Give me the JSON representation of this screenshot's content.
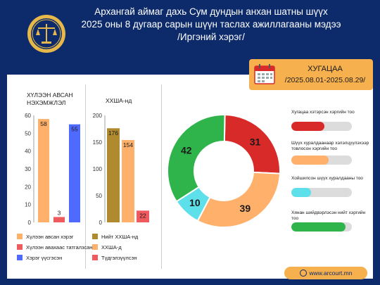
{
  "header": {
    "line1": "Архангай аймаг дахь Сум дундын анхан шатны шүүх",
    "line2": "2025 оны 8 дугаар сарын шүүн таслах ажиллагааны мэдээ",
    "line3": "/Иргэний хэрэг/"
  },
  "deadline": {
    "title": "ХУГАЦАА",
    "range": "/2025.08.01-2025.08.29/"
  },
  "footer": {
    "url": "www.arcourt.mn"
  },
  "colors": {
    "navy": "#0d2b6b",
    "orange": "#f6b04d",
    "salmon": "#ffb06b",
    "red": "#ef5a5f",
    "blue": "#4f6bff",
    "olive": "#b08a2e",
    "green": "#2fb44b",
    "darkred": "#d92a2a",
    "cyan": "#5ee0ea",
    "gold": "#e6b84a"
  },
  "chart_data": [
    {
      "type": "bar",
      "title_line1": "ХҮЛЭЭН АВСАН",
      "title_line2": "НЭХЭМЖЛЭЛ",
      "ylim": [
        0,
        60
      ],
      "yticks": [
        0,
        10,
        20,
        30,
        40,
        50,
        60
      ],
      "series": [
        {
          "name": "Хүлээн авсан хэрэг",
          "value": 58,
          "color": "#ffb06b"
        },
        {
          "name": "Хүлээн авахаас татгалзсан",
          "value": 3,
          "color": "#ef5a5f"
        },
        {
          "name": "Хэрэг үүсгэсэн",
          "value": 55,
          "color": "#4f6bff"
        }
      ]
    },
    {
      "type": "bar",
      "title": "ХХША-нд",
      "ylim": [
        0,
        200
      ],
      "yticks": [
        0,
        50,
        100,
        150,
        200
      ],
      "series": [
        {
          "name": "Нийт ХХША-нд",
          "value": 176,
          "color": "#b08a2e"
        },
        {
          "name": "ХХША-д",
          "value": 154,
          "color": "#ffb06b"
        },
        {
          "name": "Түдгэлзүүлсэн",
          "value": 22,
          "color": "#ef5a5f"
        }
      ]
    },
    {
      "type": "pie",
      "values": [
        {
          "value": 31,
          "color": "#d92a2a"
        },
        {
          "value": 39,
          "color": "#ffb06b"
        },
        {
          "value": 10,
          "color": "#5ee0ea"
        },
        {
          "value": 42,
          "color": "#2fb44b"
        }
      ]
    }
  ],
  "progress": [
    {
      "label": "Хугацаа хэтэрсэн хэргийн тоо",
      "fraction": 0.55,
      "color": "#d92a2a"
    },
    {
      "label": "Шүүх хуралдаанаар хэлэлцүүлэхээр товлосон хэргийн тоо",
      "fraction": 0.62,
      "color": "#ffb06b"
    },
    {
      "label": "Хойшилсон шүүх хуралдааны тоо",
      "fraction": 0.32,
      "color": "#5ee0ea"
    },
    {
      "label": "Хянан шийдвэрлэсэн нийт хэргийн тоо",
      "fraction": 0.9,
      "color": "#2fb44b"
    }
  ]
}
